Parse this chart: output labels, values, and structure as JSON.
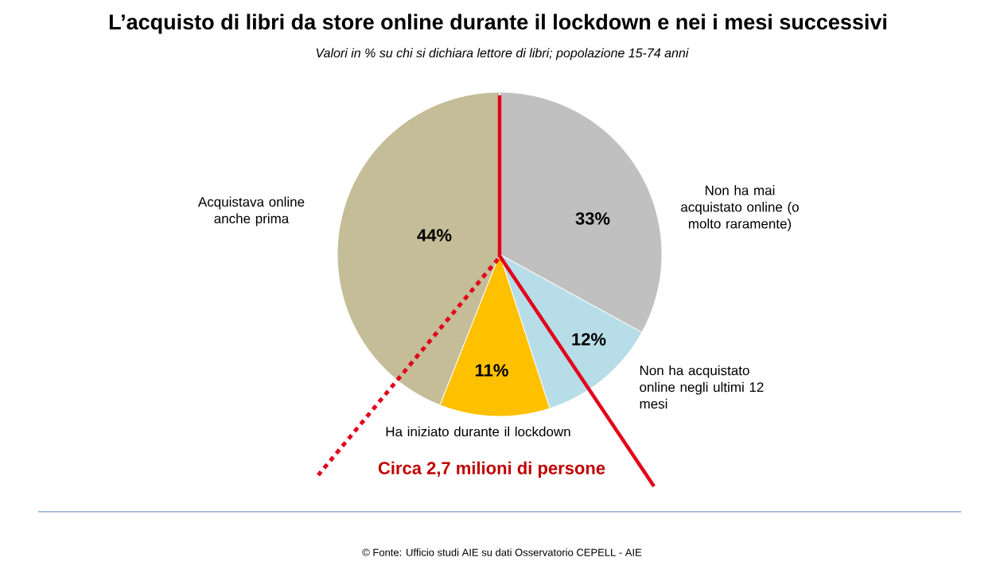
{
  "chart_data": {
    "type": "pie",
    "title": "L’acquisto di libri da store online durante il lockdown e nei i mesi successivi",
    "subtitle": "Valori in % su chi si dichiara lettore di libri; popolazione 15-74 anni",
    "categories": [
      "Non ha mai acquistato online (o molto raramente)",
      "Non ha acquistato online negli ultimi 12 mesi",
      "Ha iniziato durante il lockdown",
      "Acquistava online anche prima"
    ],
    "values": [
      33,
      12,
      11,
      44
    ],
    "colors": [
      "#c0c0c0",
      "#b7dde8",
      "#ffc000",
      "#c4bd97"
    ],
    "value_labels": [
      "33%",
      "12%",
      "11%",
      "44%"
    ],
    "annotations": [
      "Circa 2,7 milioni di persone",
      "© Fonte: Ufficio studi AIE su dati Osservatorio CEPELL - AIE"
    ]
  }
}
